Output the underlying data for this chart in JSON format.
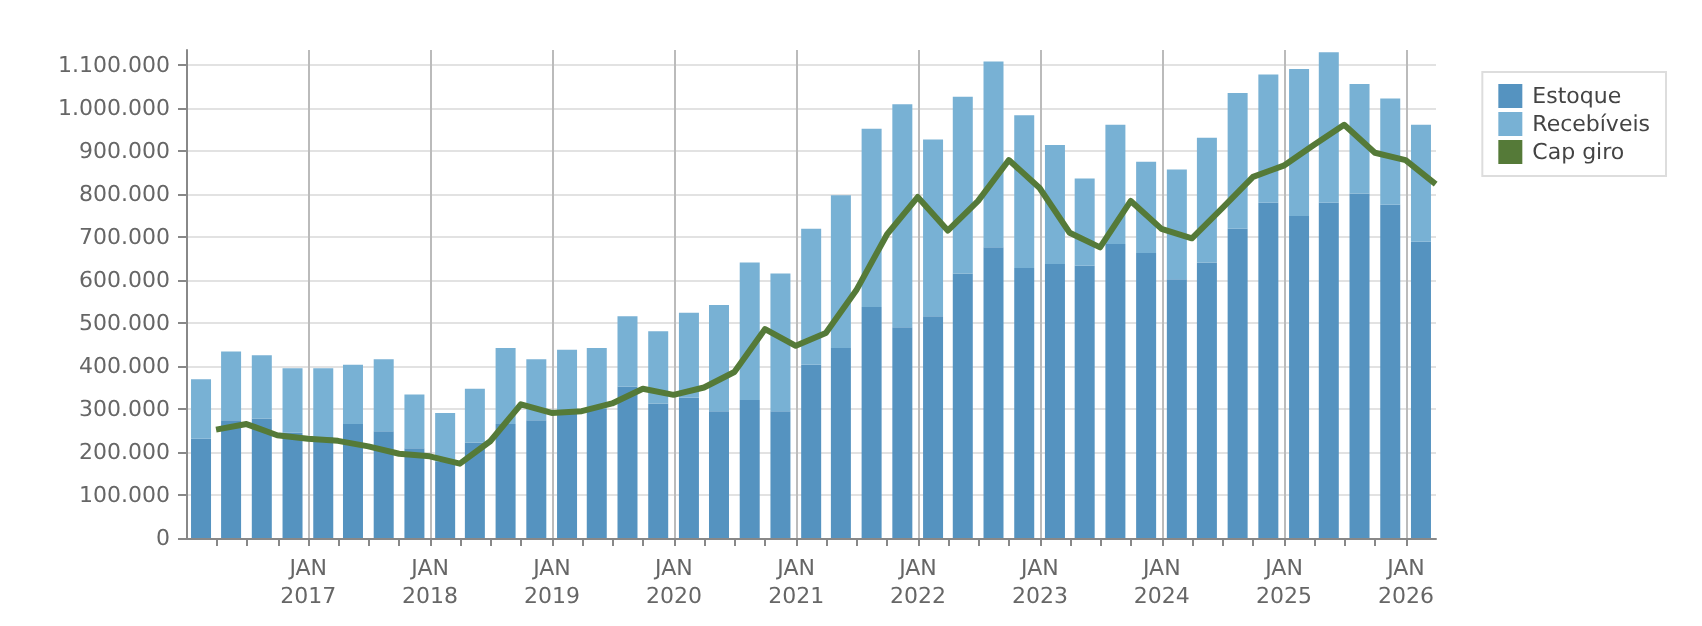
{
  "chart_data": {
    "type": "bar",
    "stacked": true,
    "x": [
      "2016-02-15",
      "2016-05-15",
      "2016-08-15",
      "2016-11-15",
      "2017-02-15",
      "2017-05-15",
      "2017-08-15",
      "2017-11-15",
      "2018-02-15",
      "2018-05-15",
      "2018-08-15",
      "2018-11-15",
      "2019-02-15",
      "2019-05-15",
      "2019-08-15",
      "2019-11-15",
      "2020-02-15",
      "2020-05-15",
      "2020-08-15",
      "2020-11-15",
      "2021-02-15",
      "2021-05-15",
      "2021-08-15",
      "2021-11-15",
      "2022-02-15",
      "2022-05-15",
      "2022-08-15",
      "2022-11-15",
      "2023-02-15",
      "2023-05-15",
      "2023-08-15",
      "2023-11-15",
      "2024-02-15",
      "2024-05-15",
      "2024-08-15",
      "2024-11-15",
      "2025-02-15",
      "2025-05-15",
      "2025-08-15",
      "2025-11-15",
      "2026-02-15"
    ],
    "series": [
      {
        "name": "Estoque",
        "color": "#5593c0",
        "values": [
          231000,
          274000,
          278000,
          245000,
          235000,
          265000,
          248000,
          209000,
          177000,
          222000,
          265000,
          274000,
          291000,
          300000,
          352000,
          313000,
          326000,
          295000,
          321000,
          295000,
          403000,
          442000,
          537000,
          490000,
          516000,
          615000,
          676000,
          628000,
          637000,
          633000,
          684000,
          663000,
          602000,
          641000,
          719000,
          780000,
          749000,
          780000,
          801000,
          775000,
          689000
        ]
      },
      {
        "name": "Recebíveis",
        "color": "#78b1d4",
        "values": [
          138000,
          160000,
          147000,
          150000,
          160000,
          138000,
          168000,
          125000,
          114000,
          125000,
          177000,
          142000,
          147000,
          142000,
          164000,
          168000,
          198000,
          247000,
          320000,
          320000,
          316000,
          355000,
          415000,
          519000,
          411000,
          411000,
          432000,
          355000,
          277000,
          203000,
          277000,
          212000,
          255000,
          290000,
          316000,
          298000,
          342000,
          350000,
          255000,
          247000,
          272000
        ]
      },
      {
        "name": "Cap giro",
        "type": "line",
        "color": "#557a38",
        "x": [
          "2016-03-31",
          "2016-06-30",
          "2016-09-30",
          "2016-12-31",
          "2017-03-31",
          "2017-06-30",
          "2017-09-30",
          "2017-12-31",
          "2018-03-31",
          "2018-06-30",
          "2018-09-30",
          "2018-12-31",
          "2019-03-31",
          "2019-06-30",
          "2019-09-30",
          "2019-12-31",
          "2020-03-31",
          "2020-06-30",
          "2020-09-30",
          "2020-12-31",
          "2021-03-31",
          "2021-06-30",
          "2021-09-30",
          "2021-12-31",
          "2022-03-31",
          "2022-06-30",
          "2022-09-30",
          "2022-12-31",
          "2023-03-31",
          "2023-06-30",
          "2023-09-30",
          "2023-12-31",
          "2024-03-31",
          "2024-06-30",
          "2024-09-30",
          "2024-12-31",
          "2025-03-31",
          "2025-06-30",
          "2025-09-30",
          "2025-12-31",
          "2026-03-31"
        ],
        "values": [
          252000,
          265000,
          239000,
          231000,
          226000,
          213000,
          196000,
          190000,
          173000,
          225000,
          311000,
          291000,
          295000,
          313000,
          347000,
          333000,
          350000,
          386000,
          486000,
          447000,
          477000,
          576000,
          706000,
          793000,
          715000,
          784000,
          879000,
          814000,
          710000,
          676000,
          784000,
          719000,
          697000,
          767000,
          840000,
          866000,
          914000,
          961000,
          896000,
          879000,
          823000
        ]
      }
    ],
    "xlim": [
      "2016-01-01",
      "2026-04-01"
    ],
    "xticks": [
      {
        "value": "2016-04-01",
        "label": null
      },
      {
        "value": "2016-07-01",
        "label": null
      },
      {
        "value": "2016-10-01",
        "label": null
      },
      {
        "value": "2017-01-01",
        "label": "JAN\n2017"
      },
      {
        "value": "2017-04-01",
        "label": null
      },
      {
        "value": "2017-07-01",
        "label": null
      },
      {
        "value": "2017-10-01",
        "label": null
      },
      {
        "value": "2018-01-01",
        "label": "JAN\n2018"
      },
      {
        "value": "2018-04-01",
        "label": null
      },
      {
        "value": "2018-07-01",
        "label": null
      },
      {
        "value": "2018-10-01",
        "label": null
      },
      {
        "value": "2019-01-01",
        "label": "JAN\n2019"
      },
      {
        "value": "2019-04-01",
        "label": null
      },
      {
        "value": "2019-07-01",
        "label": null
      },
      {
        "value": "2019-10-01",
        "label": null
      },
      {
        "value": "2020-01-01",
        "label": "JAN\n2020"
      },
      {
        "value": "2020-04-01",
        "label": null
      },
      {
        "value": "2020-07-01",
        "label": null
      },
      {
        "value": "2020-10-01",
        "label": null
      },
      {
        "value": "2021-01-01",
        "label": "JAN\n2021"
      },
      {
        "value": "2021-04-01",
        "label": null
      },
      {
        "value": "2021-07-01",
        "label": null
      },
      {
        "value": "2021-10-01",
        "label": null
      },
      {
        "value": "2022-01-01",
        "label": "JAN\n2022"
      },
      {
        "value": "2022-04-01",
        "label": null
      },
      {
        "value": "2022-07-01",
        "label": null
      },
      {
        "value": "2022-10-01",
        "label": null
      },
      {
        "value": "2023-01-01",
        "label": "JAN\n2023"
      },
      {
        "value": "2023-04-01",
        "label": null
      },
      {
        "value": "2023-07-01",
        "label": null
      },
      {
        "value": "2023-10-01",
        "label": null
      },
      {
        "value": "2024-01-01",
        "label": "JAN\n2024"
      },
      {
        "value": "2024-04-01",
        "label": null
      },
      {
        "value": "2024-07-01",
        "label": null
      },
      {
        "value": "2024-10-01",
        "label": null
      },
      {
        "value": "2025-01-01",
        "label": "JAN\n2025"
      },
      {
        "value": "2025-04-01",
        "label": null
      },
      {
        "value": "2025-07-01",
        "label": null
      },
      {
        "value": "2025-10-01",
        "label": null
      },
      {
        "value": "2026-01-01",
        "label": "JAN\n2026"
      }
    ],
    "ylim": [
      0,
      1135000
    ],
    "yticks": [
      0,
      {
        "value": 100000,
        "label": "100.000"
      },
      {
        "value": 200000,
        "label": "200.000"
      },
      {
        "value": 300000,
        "label": "300.000"
      },
      {
        "value": 400000,
        "label": "400.000"
      },
      {
        "value": 500000,
        "label": "500.000"
      },
      {
        "value": 600000,
        "label": "600.000"
      },
      {
        "value": 700000,
        "label": "700.000"
      },
      {
        "value": 800000,
        "label": "800.000"
      },
      {
        "value": 900000,
        "label": "900.000"
      },
      {
        "value": 1000000,
        "label": "1.000.000"
      },
      {
        "value": 1100000,
        "label": "1.100.000"
      }
    ],
    "grid": true,
    "legend": "top right",
    "marker": "none",
    "line_style": "solid"
  }
}
